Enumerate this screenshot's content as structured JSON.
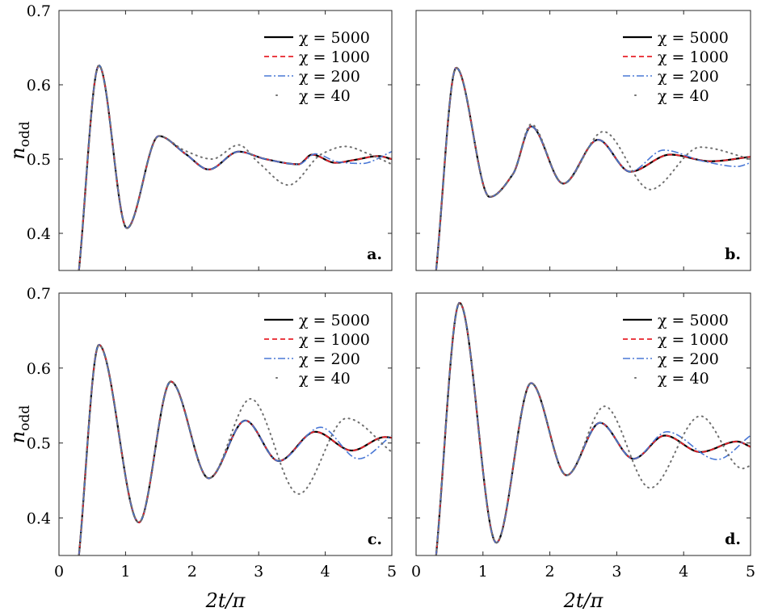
{
  "figure": {
    "xlabel": "2t/π",
    "ylabel_main": "n",
    "ylabel_sub": "odd",
    "x_ticks": [
      "0",
      "1",
      "2",
      "3",
      "4",
      "5"
    ],
    "y_ticks": [
      "0.4",
      "0.5",
      "0.6",
      "0.7"
    ]
  },
  "legend": [
    "χ = 5000",
    "χ = 1000",
    "χ = 200",
    "χ = 40"
  ],
  "colors": {
    "chi5000": "#000000",
    "chi1000": "#e8222a",
    "chi200": "#4a78d6",
    "chi40": "#707070"
  },
  "chart_data": [
    {
      "type": "line",
      "panel_label": "a.",
      "xlim": [
        0,
        5
      ],
      "ylim": [
        0.35,
        0.7
      ],
      "series": [
        {
          "name": "χ = 5000",
          "x": [
            0.3,
            0.6,
            1.02,
            1.5,
            1.9,
            2.25,
            2.7,
            3.1,
            3.6,
            3.8,
            4.15,
            4.45,
            4.8,
            5.0
          ],
          "values": [
            0.35,
            0.626,
            0.407,
            0.531,
            0.507,
            0.486,
            0.51,
            0.5,
            0.493,
            0.506,
            0.495,
            0.499,
            0.504,
            0.5
          ]
        },
        {
          "name": "χ = 1000",
          "x": [
            0.3,
            0.6,
            1.02,
            1.5,
            1.9,
            2.25,
            2.7,
            3.1,
            3.6,
            3.8,
            4.15,
            4.45,
            4.8,
            5.0
          ],
          "values": [
            0.35,
            0.626,
            0.407,
            0.531,
            0.507,
            0.486,
            0.51,
            0.5,
            0.493,
            0.506,
            0.495,
            0.499,
            0.504,
            0.5
          ]
        },
        {
          "name": "χ = 200",
          "x": [
            0.3,
            0.6,
            1.02,
            1.5,
            1.9,
            2.25,
            2.7,
            3.1,
            3.6,
            3.85,
            4.2,
            4.55,
            5.0
          ],
          "values": [
            0.35,
            0.626,
            0.407,
            0.531,
            0.507,
            0.486,
            0.51,
            0.5,
            0.493,
            0.507,
            0.496,
            0.494,
            0.51
          ]
        },
        {
          "name": "χ = 40",
          "x": [
            0.3,
            0.6,
            1.02,
            1.5,
            1.9,
            2.3,
            2.7,
            3.0,
            3.45,
            3.95,
            4.3,
            4.65,
            5.0
          ],
          "values": [
            0.35,
            0.626,
            0.407,
            0.531,
            0.511,
            0.5,
            0.519,
            0.495,
            0.465,
            0.507,
            0.517,
            0.507,
            0.493
          ]
        }
      ]
    },
    {
      "type": "line",
      "panel_label": "b.",
      "xlim": [
        0,
        5
      ],
      "ylim": [
        0.35,
        0.7
      ],
      "series": [
        {
          "name": "χ = 5000",
          "x": [
            0.3,
            0.6,
            1.1,
            1.45,
            1.72,
            2.2,
            2.72,
            3.2,
            3.8,
            4.4,
            5.0
          ],
          "values": [
            0.35,
            0.623,
            0.449,
            0.48,
            0.544,
            0.467,
            0.526,
            0.483,
            0.506,
            0.497,
            0.503
          ]
        },
        {
          "name": "χ = 1000",
          "x": [
            0.3,
            0.6,
            1.1,
            1.45,
            1.72,
            2.2,
            2.72,
            3.2,
            3.8,
            4.4,
            5.0
          ],
          "values": [
            0.35,
            0.623,
            0.449,
            0.48,
            0.544,
            0.467,
            0.526,
            0.483,
            0.506,
            0.497,
            0.503
          ]
        },
        {
          "name": "χ = 200",
          "x": [
            0.3,
            0.6,
            1.1,
            1.45,
            1.72,
            2.2,
            2.72,
            3.2,
            3.7,
            4.3,
            4.8,
            5.0
          ],
          "values": [
            0.35,
            0.623,
            0.449,
            0.48,
            0.544,
            0.467,
            0.526,
            0.483,
            0.512,
            0.497,
            0.49,
            0.495
          ]
        },
        {
          "name": "χ = 40",
          "x": [
            0.3,
            0.6,
            1.1,
            1.45,
            1.72,
            2.2,
            2.8,
            3.5,
            4.25,
            5.0
          ],
          "values": [
            0.35,
            0.623,
            0.449,
            0.48,
            0.547,
            0.467,
            0.537,
            0.459,
            0.516,
            0.5
          ]
        }
      ]
    },
    {
      "type": "line",
      "panel_label": "c.",
      "xlim": [
        0,
        5
      ],
      "ylim": [
        0.35,
        0.7
      ],
      "series": [
        {
          "name": "χ = 5000",
          "x": [
            0.3,
            0.6,
            1.2,
            1.68,
            2.25,
            2.8,
            3.3,
            3.85,
            4.4,
            4.9,
            5.0
          ],
          "values": [
            0.35,
            0.631,
            0.394,
            0.582,
            0.453,
            0.53,
            0.476,
            0.515,
            0.49,
            0.508,
            0.507
          ]
        },
        {
          "name": "χ = 1000",
          "x": [
            0.3,
            0.6,
            1.2,
            1.68,
            2.25,
            2.8,
            3.3,
            3.85,
            4.4,
            4.9,
            5.0
          ],
          "values": [
            0.35,
            0.631,
            0.394,
            0.582,
            0.453,
            0.53,
            0.476,
            0.515,
            0.49,
            0.508,
            0.507
          ]
        },
        {
          "name": "χ = 200",
          "x": [
            0.3,
            0.6,
            1.2,
            1.68,
            2.25,
            2.8,
            3.3,
            3.93,
            4.5,
            5.0
          ],
          "values": [
            0.35,
            0.631,
            0.394,
            0.582,
            0.453,
            0.53,
            0.476,
            0.521,
            0.479,
            0.51
          ]
        },
        {
          "name": "χ = 40",
          "x": [
            0.3,
            0.6,
            1.2,
            1.68,
            2.25,
            2.88,
            3.6,
            4.32,
            5.0
          ],
          "values": [
            0.35,
            0.631,
            0.394,
            0.582,
            0.453,
            0.559,
            0.432,
            0.533,
            0.488
          ]
        }
      ]
    },
    {
      "type": "line",
      "panel_label": "d.",
      "xlim": [
        0,
        5
      ],
      "ylim": [
        0.35,
        0.7
      ],
      "series": [
        {
          "name": "χ = 5000",
          "x": [
            0.3,
            0.65,
            1.2,
            1.72,
            2.25,
            2.75,
            3.25,
            3.72,
            4.25,
            4.8,
            5.0
          ],
          "values": [
            0.35,
            0.687,
            0.367,
            0.58,
            0.457,
            0.527,
            0.479,
            0.51,
            0.488,
            0.502,
            0.495
          ]
        },
        {
          "name": "χ = 1000",
          "x": [
            0.3,
            0.65,
            1.2,
            1.72,
            2.25,
            2.75,
            3.25,
            3.72,
            4.25,
            4.8,
            5.0
          ],
          "values": [
            0.35,
            0.687,
            0.367,
            0.58,
            0.457,
            0.527,
            0.479,
            0.51,
            0.488,
            0.502,
            0.495
          ]
        },
        {
          "name": "χ = 200",
          "x": [
            0.3,
            0.65,
            1.2,
            1.72,
            2.25,
            2.75,
            3.25,
            3.75,
            4.5,
            5.0
          ],
          "values": [
            0.35,
            0.687,
            0.367,
            0.58,
            0.457,
            0.527,
            0.479,
            0.515,
            0.478,
            0.51
          ]
        },
        {
          "name": "χ = 40",
          "x": [
            0.3,
            0.65,
            1.2,
            1.72,
            2.25,
            2.82,
            3.5,
            4.25,
            4.88,
            5.0
          ],
          "values": [
            0.35,
            0.687,
            0.367,
            0.58,
            0.457,
            0.549,
            0.44,
            0.536,
            0.466,
            0.47
          ]
        }
      ]
    }
  ]
}
